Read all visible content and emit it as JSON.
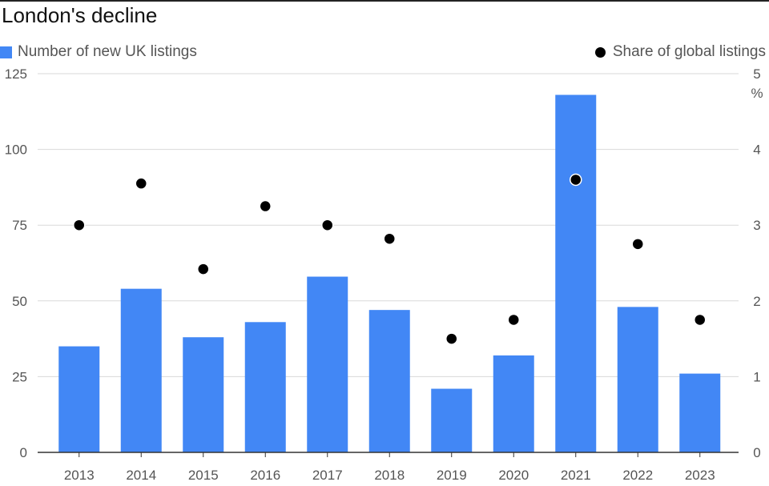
{
  "title": "London's decline",
  "legend": {
    "bars_label": "Number of new UK listings",
    "dots_label": "Share of global listings"
  },
  "colors": {
    "bar": "#4287f5",
    "dot": "#000000",
    "grid": "#d9d9d9"
  },
  "chart_data": {
    "type": "bar",
    "title": "London's decline",
    "categories": [
      "2013",
      "2014",
      "2015",
      "2016",
      "2017",
      "2018",
      "2019",
      "2020",
      "2021",
      "2022",
      "2023"
    ],
    "series": [
      {
        "name": "Number of new UK listings",
        "type": "bar",
        "axis": "left",
        "values": [
          35,
          54,
          38,
          43,
          58,
          47,
          21,
          32,
          118,
          48,
          26
        ]
      },
      {
        "name": "Share of global listings",
        "type": "scatter",
        "axis": "right",
        "values": [
          3.0,
          3.55,
          2.42,
          3.25,
          3.0,
          2.82,
          1.5,
          1.75,
          3.6,
          2.75,
          1.75
        ]
      }
    ],
    "y_left": {
      "ylim": [
        0,
        125
      ],
      "ticks": [
        0,
        25,
        50,
        75,
        100,
        125
      ]
    },
    "y_right": {
      "ylim": [
        0,
        5
      ],
      "ticks": [
        0,
        1,
        2,
        3,
        4,
        5
      ],
      "unit": "%"
    },
    "grid": true,
    "legend_placement": "top"
  }
}
